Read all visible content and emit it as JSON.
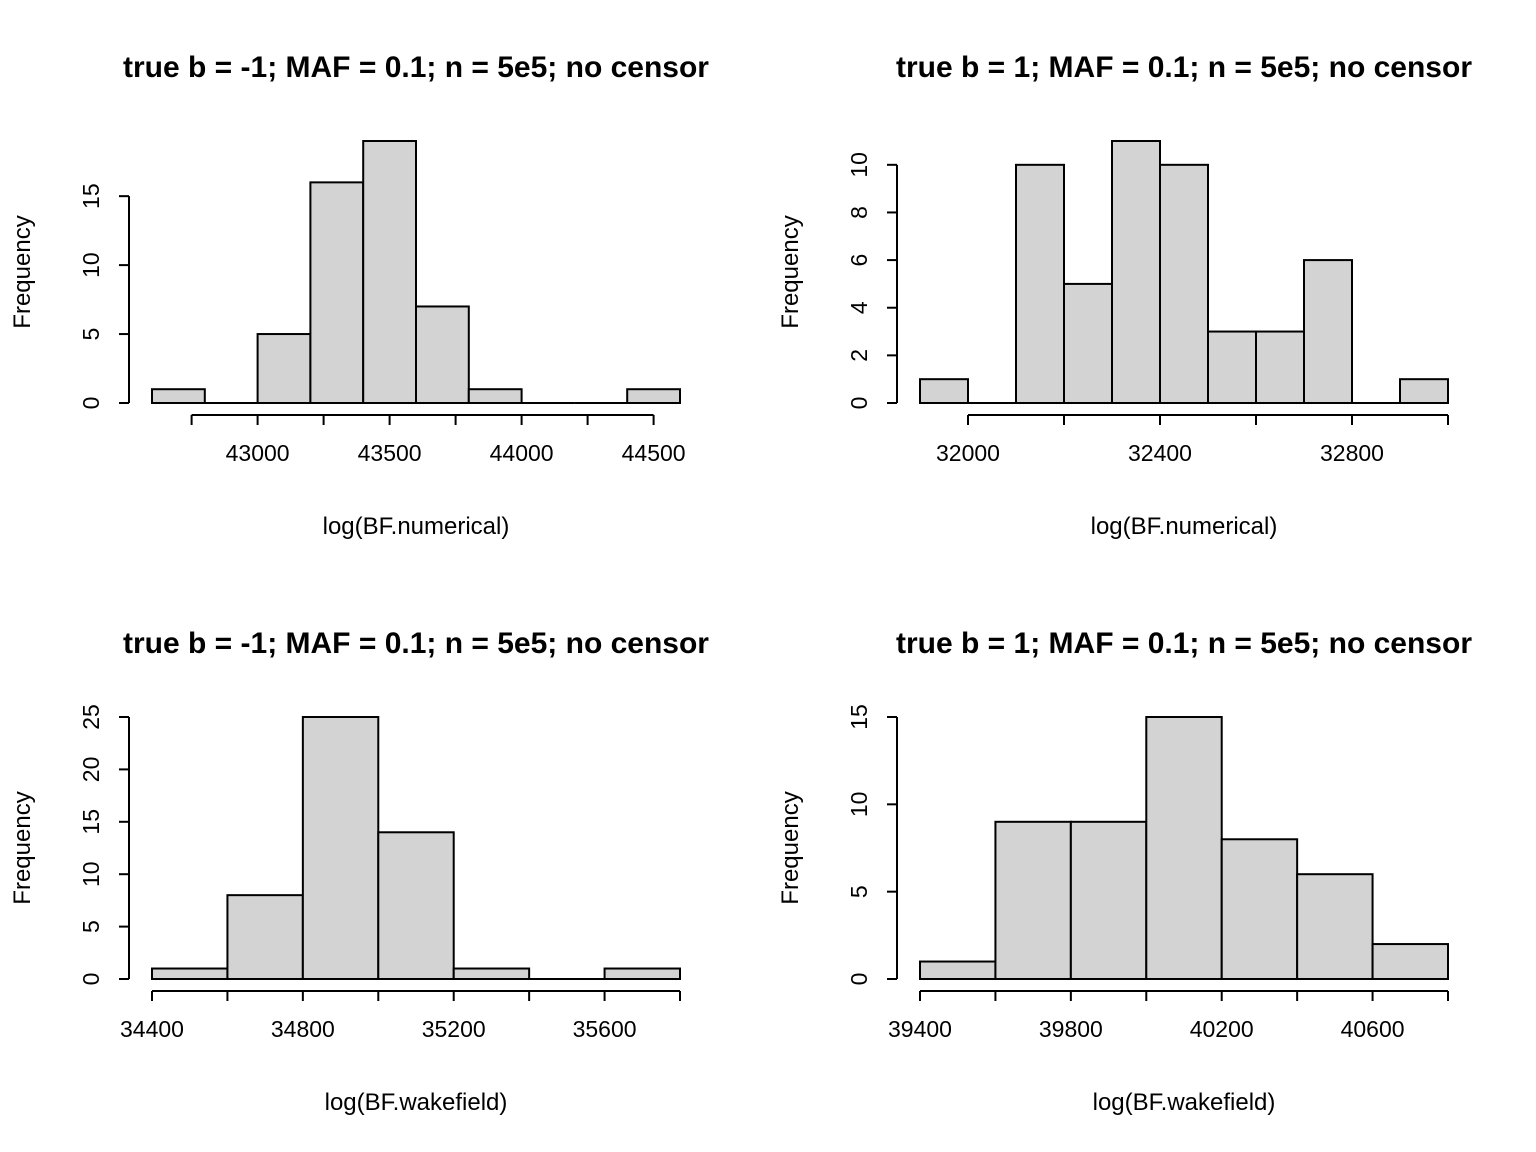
{
  "chart_data": [
    {
      "type": "bar",
      "subtype": "histogram",
      "title": "true b = -1; MAF = 0.1; n = 5e5; no censor",
      "xlabel": "log(BF.numerical)",
      "ylabel": "Frequency",
      "bin_edges": [
        42600,
        42800,
        43000,
        43200,
        43400,
        43600,
        43800,
        44000,
        44200,
        44400,
        44600
      ],
      "values": [
        1,
        0,
        5,
        16,
        19,
        7,
        1,
        0,
        0,
        1
      ],
      "xticks": [
        43000,
        43500,
        44000,
        44500
      ],
      "xtick_labels": [
        "43000",
        "43500",
        "44000",
        "44500"
      ],
      "yticks": [
        0,
        5,
        10,
        15
      ],
      "ytick_labels": [
        "0",
        "5",
        "10",
        "15"
      ],
      "xlim": [
        42600,
        44600
      ],
      "ylim": [
        0,
        19
      ],
      "grid": false,
      "bar_color": "#d3d3d3"
    },
    {
      "type": "bar",
      "subtype": "histogram",
      "title": "true b = 1; MAF = 0.1; n = 5e5; no censor",
      "xlabel": "log(BF.numerical)",
      "ylabel": "Frequency",
      "bin_edges": [
        31900,
        32000,
        32100,
        32200,
        32300,
        32400,
        32500,
        32600,
        32700,
        32800,
        32900,
        33000
      ],
      "values": [
        1,
        0,
        10,
        5,
        11,
        10,
        3,
        3,
        6,
        0,
        1
      ],
      "xticks": [
        32000,
        32400,
        32800
      ],
      "xtick_labels": [
        "32000",
        "32400",
        "32800"
      ],
      "yticks": [
        0,
        2,
        4,
        6,
        8,
        10
      ],
      "ytick_labels": [
        "0",
        "2",
        "4",
        "6",
        "8",
        "10"
      ],
      "xlim": [
        31900,
        33000
      ],
      "ylim": [
        0,
        11
      ],
      "grid": false,
      "bar_color": "#d3d3d3"
    },
    {
      "type": "bar",
      "subtype": "histogram",
      "title": "true b = -1; MAF = 0.1; n = 5e5; no censor",
      "xlabel": "log(BF.wakefield)",
      "ylabel": "Frequency",
      "bin_edges": [
        34400,
        34600,
        34800,
        35000,
        35200,
        35400,
        35600,
        35800
      ],
      "values": [
        1,
        8,
        25,
        14,
        1,
        0,
        1
      ],
      "xticks": [
        34400,
        34800,
        35200,
        35600
      ],
      "xtick_labels": [
        "34400",
        "34800",
        "35200",
        "35600"
      ],
      "yticks": [
        0,
        5,
        10,
        15,
        20,
        25
      ],
      "ytick_labels": [
        "0",
        "5",
        "10",
        "15",
        "20",
        "25"
      ],
      "xlim": [
        34400,
        35800
      ],
      "ylim": [
        0,
        25
      ],
      "grid": false,
      "bar_color": "#d3d3d3"
    },
    {
      "type": "bar",
      "subtype": "histogram",
      "title": "true b = 1; MAF = 0.1; n = 5e5; no censor",
      "xlabel": "log(BF.wakefield)",
      "ylabel": "Frequency",
      "bin_edges": [
        39400,
        39600,
        39800,
        40000,
        40200,
        40400,
        40600,
        40800
      ],
      "values": [
        1,
        9,
        9,
        15,
        8,
        6,
        2
      ],
      "xticks": [
        39400,
        39800,
        40200,
        40600
      ],
      "xtick_labels": [
        "39400",
        "39800",
        "40200",
        "40600"
      ],
      "yticks": [
        0,
        5,
        10,
        15
      ],
      "ytick_labels": [
        "0",
        "5",
        "10",
        "15"
      ],
      "xlim": [
        39400,
        40800
      ],
      "ylim": [
        0,
        15
      ],
      "grid": false,
      "bar_color": "#d3d3d3"
    }
  ]
}
